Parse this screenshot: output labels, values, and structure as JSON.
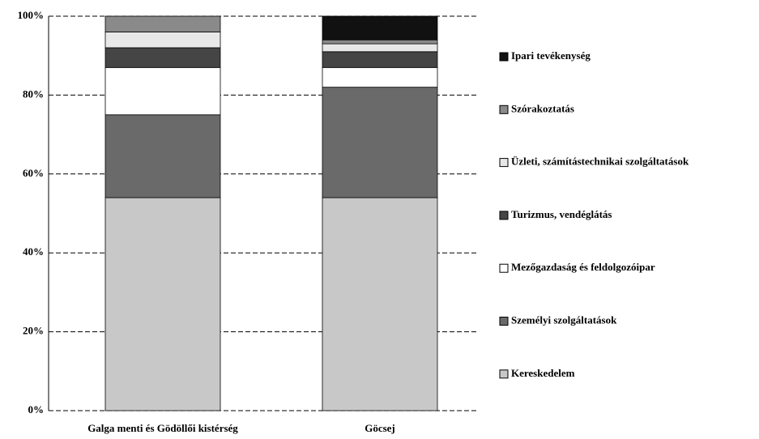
{
  "chart_data": {
    "type": "stacked_bar",
    "categories": [
      "Galga menti és Gödöllői kistérség",
      "Göcsej"
    ],
    "series": [
      {
        "name": "Kereskedelem",
        "color": "#c8c8c8",
        "values": [
          54,
          54
        ]
      },
      {
        "name": "Személyi szolgáltatások",
        "color": "#6a6a6a",
        "values": [
          21,
          28
        ]
      },
      {
        "name": "Mezőgazdaság és feldolgozóipar",
        "color": "#ffffff",
        "values": [
          12,
          5
        ]
      },
      {
        "name": "Turizmus, vendéglátás",
        "color": "#454545",
        "values": [
          5,
          4
        ]
      },
      {
        "name": "Üzleti, számítástechnikai szolgáltatások",
        "color": "#e8e8e8",
        "values": [
          4,
          2
        ]
      },
      {
        "name": "Szórakoztatás",
        "color": "#8a8a8a",
        "values": [
          4,
          1
        ]
      },
      {
        "name": "Ipari tevékenység",
        "color": "#111111",
        "values": [
          0,
          6
        ]
      }
    ],
    "ylim": [
      0,
      100
    ],
    "yticks": [
      {
        "value": 0,
        "label": "0%"
      },
      {
        "value": 20,
        "label": "20%"
      },
      {
        "value": 40,
        "label": "40%"
      },
      {
        "value": 60,
        "label": "60%"
      },
      {
        "value": 80,
        "label": "80%"
      },
      {
        "value": 100,
        "label": "100%"
      }
    ],
    "grid": true,
    "legend": "right"
  }
}
